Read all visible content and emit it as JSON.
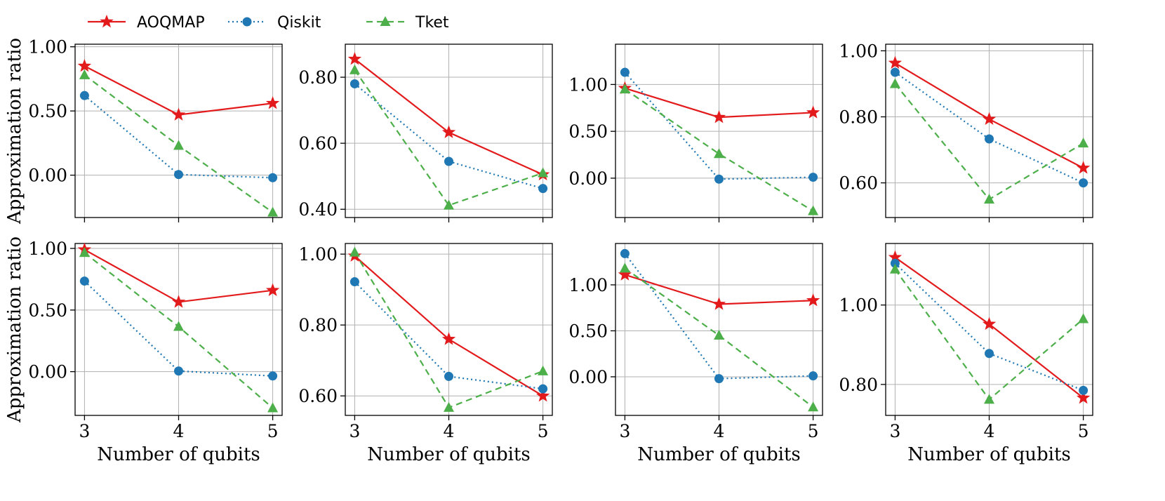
{
  "colors": {
    "AOQMAP": "#e31a1c",
    "Qiskit": "#1f78b4",
    "Tket": "#4daf4a"
  },
  "legend": [
    {
      "name": "AOQMAP",
      "marker": "star",
      "dash": "solid"
    },
    {
      "name": "Qiskit",
      "marker": "circle",
      "dash": "dotted"
    },
    {
      "name": "Tket",
      "marker": "triangle",
      "dash": "dashed"
    }
  ],
  "chart_data": [
    {
      "type": "line",
      "row": 0,
      "col": 0,
      "x": [
        3,
        4,
        5
      ],
      "xticks": [],
      "xlabel": "",
      "ylabel": "Approximation ratio",
      "ylim": [
        -0.33,
        1.02
      ],
      "yticks": [
        -0.0,
        0.5,
        1.0
      ],
      "ytick_labels": [
        "0.00",
        "0.50",
        "1.00"
      ],
      "series": [
        {
          "name": "AOQMAP",
          "values": [
            0.85,
            0.47,
            0.56
          ]
        },
        {
          "name": "Qiskit",
          "values": [
            0.62,
            0.005,
            -0.02
          ]
        },
        {
          "name": "Tket",
          "values": [
            0.78,
            0.23,
            -0.29
          ]
        }
      ]
    },
    {
      "type": "line",
      "row": 0,
      "col": 1,
      "x": [
        3,
        4,
        5
      ],
      "xticks": [],
      "xlabel": "",
      "ylabel": "",
      "ylim": [
        0.375,
        0.9
      ],
      "yticks": [
        0.4,
        0.6,
        0.8
      ],
      "ytick_labels": [
        "0.40",
        "0.60",
        "0.80"
      ],
      "series": [
        {
          "name": "AOQMAP",
          "values": [
            0.855,
            0.633,
            0.505
          ]
        },
        {
          "name": "Qiskit",
          "values": [
            0.78,
            0.545,
            0.463
          ]
        },
        {
          "name": "Tket",
          "values": [
            0.822,
            0.412,
            0.51
          ]
        }
      ]
    },
    {
      "type": "line",
      "row": 0,
      "col": 2,
      "x": [
        3,
        4,
        5
      ],
      "xticks": [],
      "xlabel": "",
      "ylabel": "",
      "ylim": [
        -0.42,
        1.43
      ],
      "yticks": [
        -0.0,
        0.5,
        1.0
      ],
      "ytick_labels": [
        "0.00",
        "0.50",
        "1.00"
      ],
      "series": [
        {
          "name": "AOQMAP",
          "values": [
            0.96,
            0.65,
            0.7
          ]
        },
        {
          "name": "Qiskit",
          "values": [
            1.13,
            -0.01,
            0.01
          ]
        },
        {
          "name": "Tket",
          "values": [
            0.95,
            0.26,
            -0.35
          ]
        }
      ]
    },
    {
      "type": "line",
      "row": 0,
      "col": 3,
      "x": [
        3,
        4,
        5
      ],
      "xticks": [],
      "xlabel": "",
      "ylabel": "",
      "ylim": [
        0.495,
        1.02
      ],
      "yticks": [
        0.6,
        0.8,
        1.0
      ],
      "ytick_labels": [
        "0.60",
        "0.80",
        "1.00"
      ],
      "series": [
        {
          "name": "AOQMAP",
          "values": [
            0.963,
            0.793,
            0.645
          ]
        },
        {
          "name": "Qiskit",
          "values": [
            0.935,
            0.733,
            0.6
          ]
        },
        {
          "name": "Tket",
          "values": [
            0.9,
            0.55,
            0.72
          ]
        }
      ]
    },
    {
      "type": "line",
      "row": 1,
      "col": 0,
      "x": [
        3,
        4,
        5
      ],
      "xticks": [
        "3",
        "4",
        "5"
      ],
      "xlabel": "Number of qubits",
      "ylabel": "Approximation ratio",
      "ylim": [
        -0.355,
        1.04
      ],
      "yticks": [
        -0.0,
        0.5,
        1.0
      ],
      "ytick_labels": [
        "0.00",
        "0.50",
        "1.00"
      ],
      "series": [
        {
          "name": "AOQMAP",
          "values": [
            0.99,
            0.565,
            0.66
          ]
        },
        {
          "name": "Qiskit",
          "values": [
            0.735,
            0.005,
            -0.035
          ]
        },
        {
          "name": "Tket",
          "values": [
            0.965,
            0.365,
            -0.295
          ]
        }
      ]
    },
    {
      "type": "line",
      "row": 1,
      "col": 1,
      "x": [
        3,
        4,
        5
      ],
      "xticks": [
        "3",
        "4",
        "5"
      ],
      "xlabel": "Number of qubits",
      "ylabel": "",
      "ylim": [
        0.545,
        1.03
      ],
      "yticks": [
        0.6,
        0.8,
        1.0
      ],
      "ytick_labels": [
        "0.60",
        "0.80",
        "1.00"
      ],
      "series": [
        {
          "name": "AOQMAP",
          "values": [
            0.995,
            0.76,
            0.6
          ]
        },
        {
          "name": "Qiskit",
          "values": [
            0.922,
            0.655,
            0.62
          ]
        },
        {
          "name": "Tket",
          "values": [
            1.005,
            0.567,
            0.67
          ]
        }
      ]
    },
    {
      "type": "line",
      "row": 1,
      "col": 2,
      "x": [
        3,
        4,
        5
      ],
      "xticks": [
        "3",
        "4",
        "5"
      ],
      "xlabel": "Number of qubits",
      "ylabel": "",
      "ylim": [
        -0.42,
        1.45
      ],
      "yticks": [
        -0.0,
        0.5,
        1.0
      ],
      "ytick_labels": [
        "0.00",
        "0.50",
        "1.00"
      ],
      "series": [
        {
          "name": "AOQMAP",
          "values": [
            1.11,
            0.79,
            0.83
          ]
        },
        {
          "name": "Qiskit",
          "values": [
            1.34,
            -0.02,
            0.01
          ]
        },
        {
          "name": "Tket",
          "values": [
            1.18,
            0.45,
            -0.33
          ]
        }
      ]
    },
    {
      "type": "line",
      "row": 1,
      "col": 3,
      "x": [
        3,
        4,
        5
      ],
      "xticks": [
        "3",
        "4",
        "5"
      ],
      "xlabel": "Number of qubits",
      "ylabel": "",
      "ylim": [
        0.722,
        1.155
      ],
      "yticks": [
        0.8,
        1.0
      ],
      "ytick_labels": [
        "0.80",
        "1.00"
      ],
      "series": [
        {
          "name": "AOQMAP",
          "values": [
            1.12,
            0.952,
            0.766
          ]
        },
        {
          "name": "Qiskit",
          "values": [
            1.105,
            0.878,
            0.785
          ]
        },
        {
          "name": "Tket",
          "values": [
            1.09,
            0.762,
            0.965
          ]
        }
      ]
    }
  ]
}
